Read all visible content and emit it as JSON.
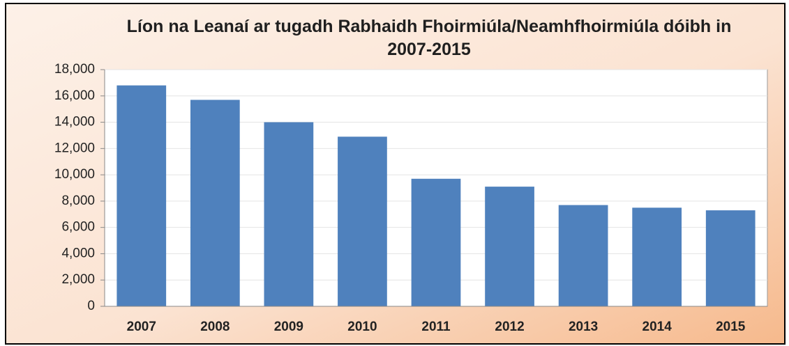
{
  "chart_data": {
    "type": "bar",
    "title": "Líon na Leanaí ar tugadh Rabhaidh Fhoirmiúla/Neamhfhoirmiúla dóibh in 2007-2015",
    "categories": [
      "2007",
      "2008",
      "2009",
      "2010",
      "2011",
      "2012",
      "2013",
      "2014",
      "2015"
    ],
    "values": [
      16800,
      15700,
      14000,
      12900,
      9700,
      9100,
      7700,
      7500,
      7300
    ],
    "color": "#4f81bd",
    "ylim": [
      0,
      18000
    ],
    "yticks": [
      0,
      {
        "value": 2000,
        "label": "2,000"
      },
      {
        "value": 4000,
        "label": "4,000"
      },
      {
        "value": 6000,
        "label": "6,000"
      },
      {
        "value": 8000,
        "label": "8,000"
      },
      {
        "value": 10000,
        "label": "10,000"
      },
      {
        "value": 12000,
        "label": "12,000"
      },
      {
        "value": 14000,
        "label": "14,000"
      },
      {
        "value": 16000,
        "label": "16,000"
      },
      {
        "value": 18000,
        "label": "18,000"
      }
    ],
    "grid": true
  }
}
